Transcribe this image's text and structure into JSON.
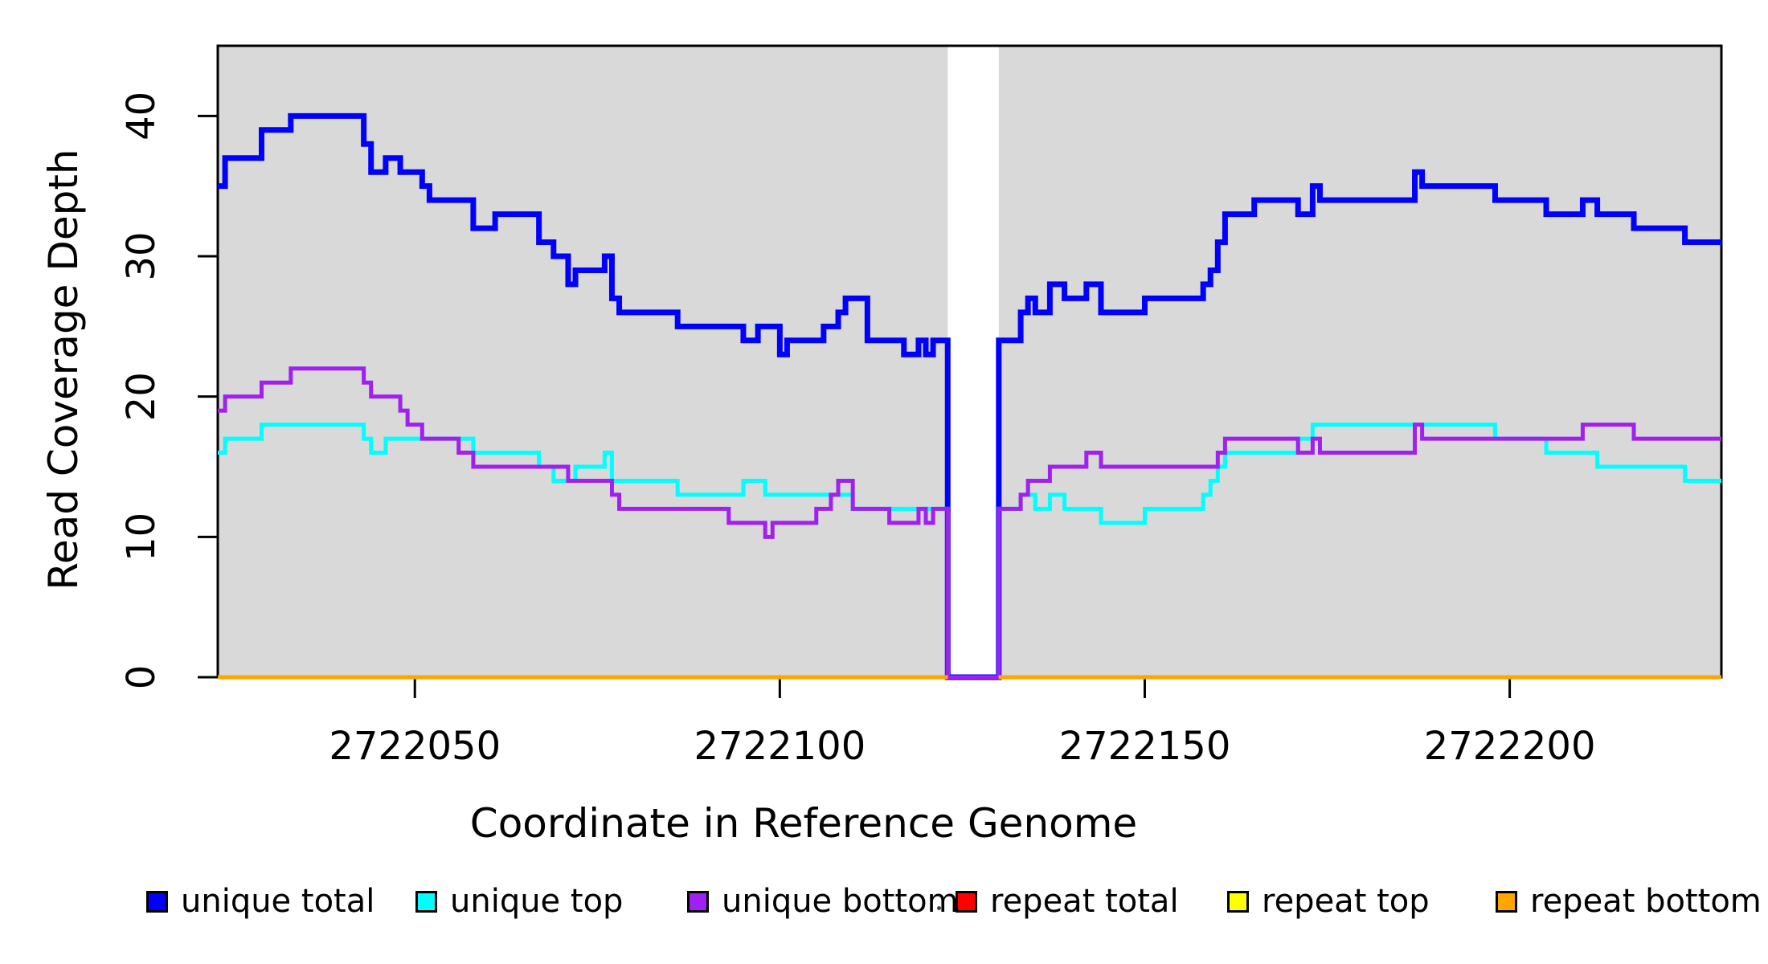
{
  "figure": {
    "x_axis_label": "Coordinate in Reference Genome",
    "y_axis_label": "Read Coverage Depth"
  },
  "legend": {
    "items": [
      {
        "label": "unique total",
        "color": "#0000ff"
      },
      {
        "label": "unique top",
        "color": "#00ffff"
      },
      {
        "label": "unique bottom",
        "color": "#a020f0"
      },
      {
        "label": "repeat total",
        "color": "#ff0000"
      },
      {
        "label": "repeat top",
        "color": "#ffff00"
      },
      {
        "label": "repeat bottom",
        "color": "#ffa500"
      }
    ]
  },
  "chart_data": {
    "type": "line",
    "subtype": "step",
    "title": "",
    "xlabel": "Coordinate in Reference Genome",
    "ylabel": "Read Coverage Depth",
    "xlim": [
      2722023,
      2722229
    ],
    "ylim": [
      0,
      45
    ],
    "x_ticks": [
      2722050,
      2722100,
      2722150,
      2722200
    ],
    "y_ticks": [
      0,
      10,
      20,
      30,
      40
    ],
    "grid": false,
    "legend_position": "bottom",
    "plot_background": "#d9d9d9",
    "no_data_region": [
      2722123,
      2722130
    ],
    "axis_color": "#000000",
    "series": [
      {
        "name": "unique total",
        "color": "#0000ff",
        "width": 7,
        "points": [
          [
            2722023,
            35
          ],
          [
            2722024,
            37
          ],
          [
            2722029,
            39
          ],
          [
            2722033,
            40
          ],
          [
            2722043,
            38
          ],
          [
            2722044,
            36
          ],
          [
            2722046,
            37
          ],
          [
            2722048,
            36
          ],
          [
            2722051,
            35
          ],
          [
            2722052,
            34
          ],
          [
            2722058,
            32
          ],
          [
            2722061,
            33
          ],
          [
            2722067,
            31
          ],
          [
            2722069,
            30
          ],
          [
            2722071,
            28
          ],
          [
            2722072,
            29
          ],
          [
            2722076,
            30
          ],
          [
            2722077,
            27
          ],
          [
            2722078,
            26
          ],
          [
            2722086,
            25
          ],
          [
            2722095,
            24
          ],
          [
            2722097,
            25
          ],
          [
            2722100,
            23
          ],
          [
            2722101,
            24
          ],
          [
            2722106,
            25
          ],
          [
            2722108,
            26
          ],
          [
            2722109,
            27
          ],
          [
            2722112,
            24
          ],
          [
            2722117,
            23
          ],
          [
            2722119,
            24
          ],
          [
            2722120,
            23
          ],
          [
            2722121,
            24
          ],
          [
            2722123,
            0
          ],
          [
            2722130,
            24
          ],
          [
            2722133,
            26
          ],
          [
            2722134,
            27
          ],
          [
            2722135,
            26
          ],
          [
            2722137,
            28
          ],
          [
            2722139,
            27
          ],
          [
            2722142,
            28
          ],
          [
            2722144,
            26
          ],
          [
            2722150,
            27
          ],
          [
            2722158,
            28
          ],
          [
            2722159,
            29
          ],
          [
            2722160,
            31
          ],
          [
            2722161,
            33
          ],
          [
            2722165,
            34
          ],
          [
            2722171,
            33
          ],
          [
            2722173,
            35
          ],
          [
            2722174,
            34
          ],
          [
            2722187,
            36
          ],
          [
            2722188,
            35
          ],
          [
            2722198,
            34
          ],
          [
            2722205,
            33
          ],
          [
            2722210,
            34
          ],
          [
            2722212,
            33
          ],
          [
            2722217,
            32
          ],
          [
            2722224,
            31
          ]
        ]
      },
      {
        "name": "unique top",
        "color": "#00ffff",
        "width": 5,
        "points": [
          [
            2722023,
            16
          ],
          [
            2722024,
            17
          ],
          [
            2722029,
            18
          ],
          [
            2722043,
            17
          ],
          [
            2722044,
            16
          ],
          [
            2722046,
            17
          ],
          [
            2722058,
            16
          ],
          [
            2722067,
            15
          ],
          [
            2722069,
            14
          ],
          [
            2722072,
            15
          ],
          [
            2722076,
            16
          ],
          [
            2722077,
            14
          ],
          [
            2722086,
            13
          ],
          [
            2722095,
            14
          ],
          [
            2722098,
            13
          ],
          [
            2722110,
            12
          ],
          [
            2722123,
            0
          ],
          [
            2722130,
            12
          ],
          [
            2722133,
            13
          ],
          [
            2722135,
            12
          ],
          [
            2722137,
            13
          ],
          [
            2722139,
            12
          ],
          [
            2722144,
            11
          ],
          [
            2722150,
            12
          ],
          [
            2722158,
            13
          ],
          [
            2722159,
            14
          ],
          [
            2722160,
            15
          ],
          [
            2722161,
            16
          ],
          [
            2722171,
            17
          ],
          [
            2722173,
            18
          ],
          [
            2722198,
            17
          ],
          [
            2722205,
            16
          ],
          [
            2722212,
            15
          ],
          [
            2722224,
            14
          ]
        ]
      },
      {
        "name": "unique bottom",
        "color": "#a020f0",
        "width": 5,
        "points": [
          [
            2722023,
            19
          ],
          [
            2722024,
            20
          ],
          [
            2722029,
            21
          ],
          [
            2722033,
            22
          ],
          [
            2722043,
            21
          ],
          [
            2722044,
            20
          ],
          [
            2722048,
            19
          ],
          [
            2722049,
            18
          ],
          [
            2722051,
            17
          ],
          [
            2722056,
            16
          ],
          [
            2722058,
            15
          ],
          [
            2722071,
            14
          ],
          [
            2722077,
            13
          ],
          [
            2722078,
            12
          ],
          [
            2722093,
            11
          ],
          [
            2722098,
            10
          ],
          [
            2722099,
            11
          ],
          [
            2722105,
            12
          ],
          [
            2722107,
            13
          ],
          [
            2722108,
            14
          ],
          [
            2722110,
            12
          ],
          [
            2722115,
            11
          ],
          [
            2722119,
            12
          ],
          [
            2722120,
            11
          ],
          [
            2722121,
            12
          ],
          [
            2722123,
            0
          ],
          [
            2722130,
            12
          ],
          [
            2722133,
            13
          ],
          [
            2722134,
            14
          ],
          [
            2722137,
            15
          ],
          [
            2722142,
            16
          ],
          [
            2722144,
            15
          ],
          [
            2722160,
            16
          ],
          [
            2722161,
            17
          ],
          [
            2722171,
            16
          ],
          [
            2722173,
            17
          ],
          [
            2722174,
            16
          ],
          [
            2722187,
            18
          ],
          [
            2722188,
            17
          ],
          [
            2722210,
            18
          ],
          [
            2722217,
            17
          ]
        ]
      },
      {
        "name": "repeat total",
        "color": "#ff0000",
        "width": 5,
        "points": [
          [
            2722023,
            0
          ],
          [
            2722123,
            null
          ],
          [
            2722130,
            0
          ]
        ]
      },
      {
        "name": "repeat top",
        "color": "#ffff00",
        "width": 5,
        "points": [
          [
            2722023,
            0
          ],
          [
            2722123,
            null
          ],
          [
            2722130,
            0
          ]
        ]
      },
      {
        "name": "repeat bottom",
        "color": "#ffa500",
        "width": 5,
        "points": [
          [
            2722023,
            0
          ],
          [
            2722123,
            null
          ],
          [
            2722130,
            0
          ]
        ]
      }
    ]
  }
}
